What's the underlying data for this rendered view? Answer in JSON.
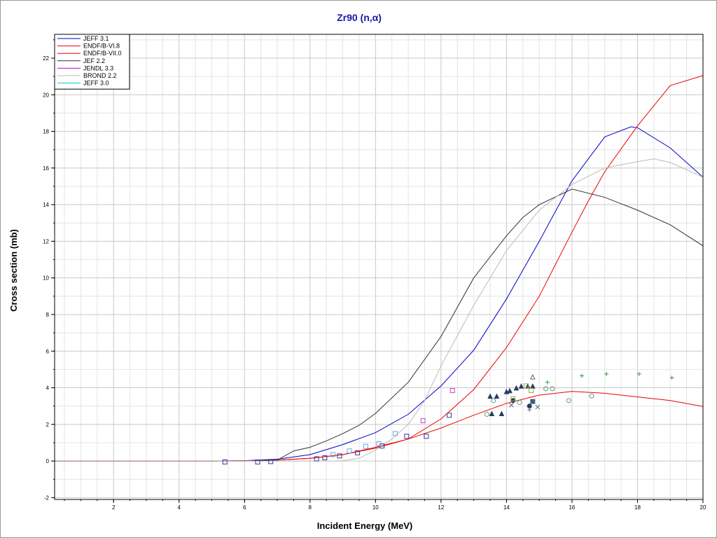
{
  "chart_data": {
    "type": "line",
    "title": "Zr90 (n,α)",
    "xlabel": "Incident Energy (MeV)",
    "ylabel": "Cross section (mb)",
    "xlim": [
      0.2,
      20
    ],
    "ylim": [
      -2.1,
      23.3
    ],
    "x_ticks": [
      2,
      4,
      6,
      8,
      10,
      12,
      14,
      16,
      18,
      20
    ],
    "y_ticks": [
      -2,
      0,
      2,
      4,
      6,
      8,
      10,
      12,
      14,
      16,
      18,
      20,
      22
    ],
    "grid": true,
    "legend_position": "top-left",
    "series": [
      {
        "name": "JEFF 3.1",
        "color": "#0000cc",
        "x": [
          0.2,
          5.0,
          6.0,
          7.0,
          8.0,
          9.0,
          10.0,
          11.0,
          12.0,
          13.0,
          14.0,
          15.0,
          16.0,
          17.0,
          17.8,
          18.0,
          19.0,
          20.0
        ],
        "y": [
          0.0,
          0.0,
          0.02,
          0.1,
          0.35,
          0.9,
          1.55,
          2.55,
          4.1,
          6.05,
          8.85,
          12.0,
          15.3,
          17.7,
          18.25,
          18.2,
          17.1,
          15.5
        ]
      },
      {
        "name": "ENDF/B-VI.8",
        "color": "#ee0000",
        "x": [
          0.2,
          5.0,
          6.0,
          7.0,
          8.0,
          9.0,
          10.0,
          11.0,
          12.0,
          13.0,
          14.0,
          15.0,
          16.0,
          16.5,
          17.0,
          18.0,
          19.0,
          20.0
        ],
        "y": [
          0.0,
          0.0,
          0.01,
          0.05,
          0.15,
          0.35,
          0.7,
          1.2,
          2.3,
          3.9,
          6.2,
          9.0,
          12.5,
          14.2,
          15.8,
          18.3,
          20.5,
          21.05
        ]
      },
      {
        "name": "ENDF/B-VII.0",
        "color": "#ee0000",
        "x": [
          0.2,
          5.0,
          6.0,
          7.0,
          8.0,
          9.0,
          10.0,
          11.0,
          12.0,
          13.0,
          14.0,
          15.0,
          16.0,
          17.0,
          18.0,
          19.0,
          20.0
        ],
        "y": [
          0.0,
          0.0,
          0.01,
          0.05,
          0.15,
          0.35,
          0.75,
          1.2,
          1.8,
          2.5,
          3.15,
          3.6,
          3.8,
          3.7,
          3.5,
          3.3,
          2.98
        ]
      },
      {
        "name": "JEF 2.2",
        "color": "#333333",
        "x": [
          0.2,
          6.0,
          7.0,
          7.5,
          8.0,
          8.5,
          9.0,
          9.5,
          10.0,
          11.0,
          12.0,
          13.0,
          14.0,
          14.5,
          15.0,
          16.0,
          17.0,
          18.0,
          19.0,
          20.0
        ],
        "y": [
          0.0,
          0.0,
          0.05,
          0.55,
          0.75,
          1.1,
          1.5,
          1.95,
          2.6,
          4.3,
          6.8,
          10.0,
          12.3,
          13.3,
          14.0,
          14.85,
          14.4,
          13.7,
          12.9,
          11.75
        ]
      },
      {
        "name": "JENDL 3.3",
        "color": "#cc00cc",
        "x": [],
        "y": []
      },
      {
        "name": "BROND 2.2",
        "color": "#bbbbbb",
        "x": [
          0.2,
          8.5,
          9.0,
          9.5,
          10.0,
          10.5,
          11.0,
          11.5,
          12.0,
          13.0,
          14.0,
          15.0,
          16.0,
          17.0,
          18.0,
          18.5,
          19.0,
          20.0
        ],
        "y": [
          0.0,
          0.0,
          0.02,
          0.15,
          0.6,
          1.2,
          2.0,
          3.3,
          5.2,
          8.5,
          11.5,
          13.7,
          15.1,
          16.0,
          16.35,
          16.5,
          16.3,
          15.5
        ]
      },
      {
        "name": "JEFF 3.0",
        "color": "#00cccc",
        "x": [],
        "y": []
      }
    ],
    "experimental_points": [
      {
        "x": 5.4,
        "y": -0.05,
        "shape": "square",
        "color": "#3a3aa0"
      },
      {
        "x": 6.4,
        "y": -0.05,
        "shape": "square",
        "color": "#3a3aa0"
      },
      {
        "x": 6.8,
        "y": -0.03,
        "shape": "square",
        "color": "#3a3aa0"
      },
      {
        "x": 8.2,
        "y": 0.12,
        "shape": "square",
        "color": "#3a3aa0"
      },
      {
        "x": 8.45,
        "y": 0.18,
        "shape": "square",
        "color": "#3a3aa0"
      },
      {
        "x": 8.9,
        "y": 0.28,
        "shape": "square",
        "color": "#3a3aa0"
      },
      {
        "x": 9.45,
        "y": 0.45,
        "shape": "square",
        "color": "#3a3aa0"
      },
      {
        "x": 10.2,
        "y": 0.82,
        "shape": "square",
        "color": "#3a3aa0"
      },
      {
        "x": 10.95,
        "y": 1.35,
        "shape": "square",
        "color": "#3a3aa0"
      },
      {
        "x": 11.55,
        "y": 1.35,
        "shape": "square",
        "color": "#3a3aa0"
      },
      {
        "x": 12.25,
        "y": 2.5,
        "shape": "square",
        "color": "#3a3aa0"
      },
      {
        "x": 8.7,
        "y": 0.35,
        "shape": "square",
        "color": "#6aa8d8"
      },
      {
        "x": 9.2,
        "y": 0.55,
        "shape": "square",
        "color": "#6aa8d8"
      },
      {
        "x": 9.7,
        "y": 0.8,
        "shape": "square",
        "color": "#6aa8d8"
      },
      {
        "x": 10.1,
        "y": 0.95,
        "shape": "square",
        "color": "#6aa8d8"
      },
      {
        "x": 10.6,
        "y": 1.5,
        "shape": "square",
        "color": "#6aa8d8"
      },
      {
        "x": 11.45,
        "y": 2.2,
        "shape": "square",
        "color": "#cc44cc"
      },
      {
        "x": 12.35,
        "y": 3.85,
        "shape": "square",
        "color": "#cc44cc"
      },
      {
        "x": 13.5,
        "y": 3.5,
        "shape": "triangle",
        "color": "#2a3a60"
      },
      {
        "x": 13.7,
        "y": 3.5,
        "shape": "triangle",
        "color": "#2a3a60"
      },
      {
        "x": 13.55,
        "y": 2.55,
        "shape": "triangle",
        "color": "#2a3a60"
      },
      {
        "x": 13.85,
        "y": 2.55,
        "shape": "triangle",
        "color": "#2a3a60"
      },
      {
        "x": 14.0,
        "y": 3.75,
        "shape": "triangle",
        "color": "#2a3a60"
      },
      {
        "x": 14.1,
        "y": 3.8,
        "shape": "triangle",
        "color": "#2a3a60"
      },
      {
        "x": 14.3,
        "y": 3.95,
        "shape": "triangle",
        "color": "#2a3a60"
      },
      {
        "x": 14.45,
        "y": 4.05,
        "shape": "triangle",
        "color": "#2a3a60"
      },
      {
        "x": 14.65,
        "y": 4.05,
        "shape": "triangle",
        "color": "#2a3a60"
      },
      {
        "x": 14.8,
        "y": 4.05,
        "shape": "triangle",
        "color": "#2a3a60"
      },
      {
        "x": 14.8,
        "y": 4.55,
        "shape": "triangle-open",
        "color": "#666666"
      },
      {
        "x": 13.4,
        "y": 2.55,
        "shape": "circle-open",
        "color": "#5a9a7a"
      },
      {
        "x": 14.4,
        "y": 3.2,
        "shape": "circle-open",
        "color": "#5a9a7a"
      },
      {
        "x": 15.2,
        "y": 3.95,
        "shape": "circle-open",
        "color": "#5a9a7a"
      },
      {
        "x": 15.4,
        "y": 3.95,
        "shape": "circle-open",
        "color": "#5a9a7a"
      },
      {
        "x": 15.9,
        "y": 3.3,
        "shape": "circle-open",
        "color": "#5a9a7a"
      },
      {
        "x": 16.6,
        "y": 3.55,
        "shape": "circle-open",
        "color": "#5a9a7a"
      },
      {
        "x": 13.6,
        "y": 3.3,
        "shape": "circle-open",
        "color": "#5a9a7a"
      },
      {
        "x": 14.2,
        "y": 3.3,
        "shape": "circle",
        "color": "#2a3a60"
      },
      {
        "x": 14.7,
        "y": 3.0,
        "shape": "circle",
        "color": "#2a3a60"
      },
      {
        "x": 14.8,
        "y": 3.25,
        "shape": "square-filled",
        "color": "#3a6080"
      },
      {
        "x": 14.6,
        "y": 4.1,
        "shape": "square",
        "color": "#9aaa40"
      },
      {
        "x": 14.75,
        "y": 3.85,
        "shape": "square",
        "color": "#9aaa40"
      },
      {
        "x": 14.2,
        "y": 3.4,
        "shape": "square",
        "color": "#9aaa40"
      },
      {
        "x": 14.15,
        "y": 3.05,
        "shape": "cross",
        "color": "#5a6a8a"
      },
      {
        "x": 14.95,
        "y": 2.95,
        "shape": "cross",
        "color": "#5a6a8a"
      },
      {
        "x": 14.7,
        "y": 2.8,
        "shape": "plus",
        "color": "#5a6a8a"
      },
      {
        "x": 15.25,
        "y": 4.3,
        "shape": "plus",
        "color": "#3a9a3a"
      },
      {
        "x": 16.3,
        "y": 4.65,
        "shape": "plus",
        "color": "#3a9a3a"
      },
      {
        "x": 17.05,
        "y": 4.75,
        "shape": "plus",
        "color": "#3a9a3a"
      },
      {
        "x": 18.05,
        "y": 4.75,
        "shape": "plus",
        "color": "#3a9a3a"
      },
      {
        "x": 19.05,
        "y": 4.55,
        "shape": "plus",
        "color": "#3a9a3a"
      }
    ]
  }
}
